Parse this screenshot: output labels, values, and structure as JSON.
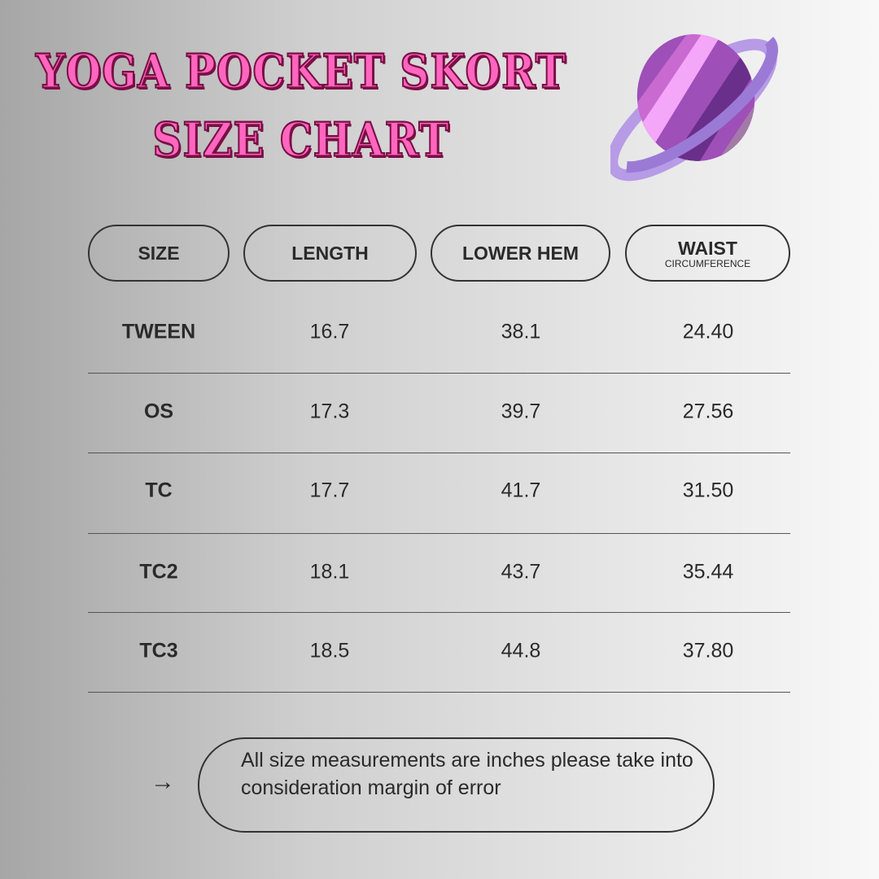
{
  "title": {
    "line1": "YOGA POCKET SKORT",
    "line2": "SIZE CHART"
  },
  "logo": {
    "icon": "planet-icon",
    "colors": {
      "planet": "#a64bc0",
      "highlight": "#f4a6f8",
      "ring": "#9b7ad6"
    }
  },
  "table": {
    "headers": [
      {
        "label": "SIZE"
      },
      {
        "label": "LENGTH"
      },
      {
        "label": "LOWER HEM"
      },
      {
        "label": "WAIST",
        "sub": "CIRCUMFERENCE"
      }
    ],
    "rows": [
      [
        "TWEEN",
        "16.7",
        "38.1",
        "24.40"
      ],
      [
        "OS",
        "17.3",
        "39.7",
        "27.56"
      ],
      [
        "TC",
        "17.7",
        "41.7",
        "31.50"
      ],
      [
        "TC2",
        "18.1",
        "43.7",
        "35.44"
      ],
      [
        "TC3",
        "18.5",
        "44.8",
        "37.80"
      ]
    ]
  },
  "note": {
    "arrow": "→",
    "text": "All size measurements are inches please take into consideration margin of error"
  },
  "colors": {
    "title_fill": "#ff66bf",
    "title_outline": "#7a0f45"
  }
}
